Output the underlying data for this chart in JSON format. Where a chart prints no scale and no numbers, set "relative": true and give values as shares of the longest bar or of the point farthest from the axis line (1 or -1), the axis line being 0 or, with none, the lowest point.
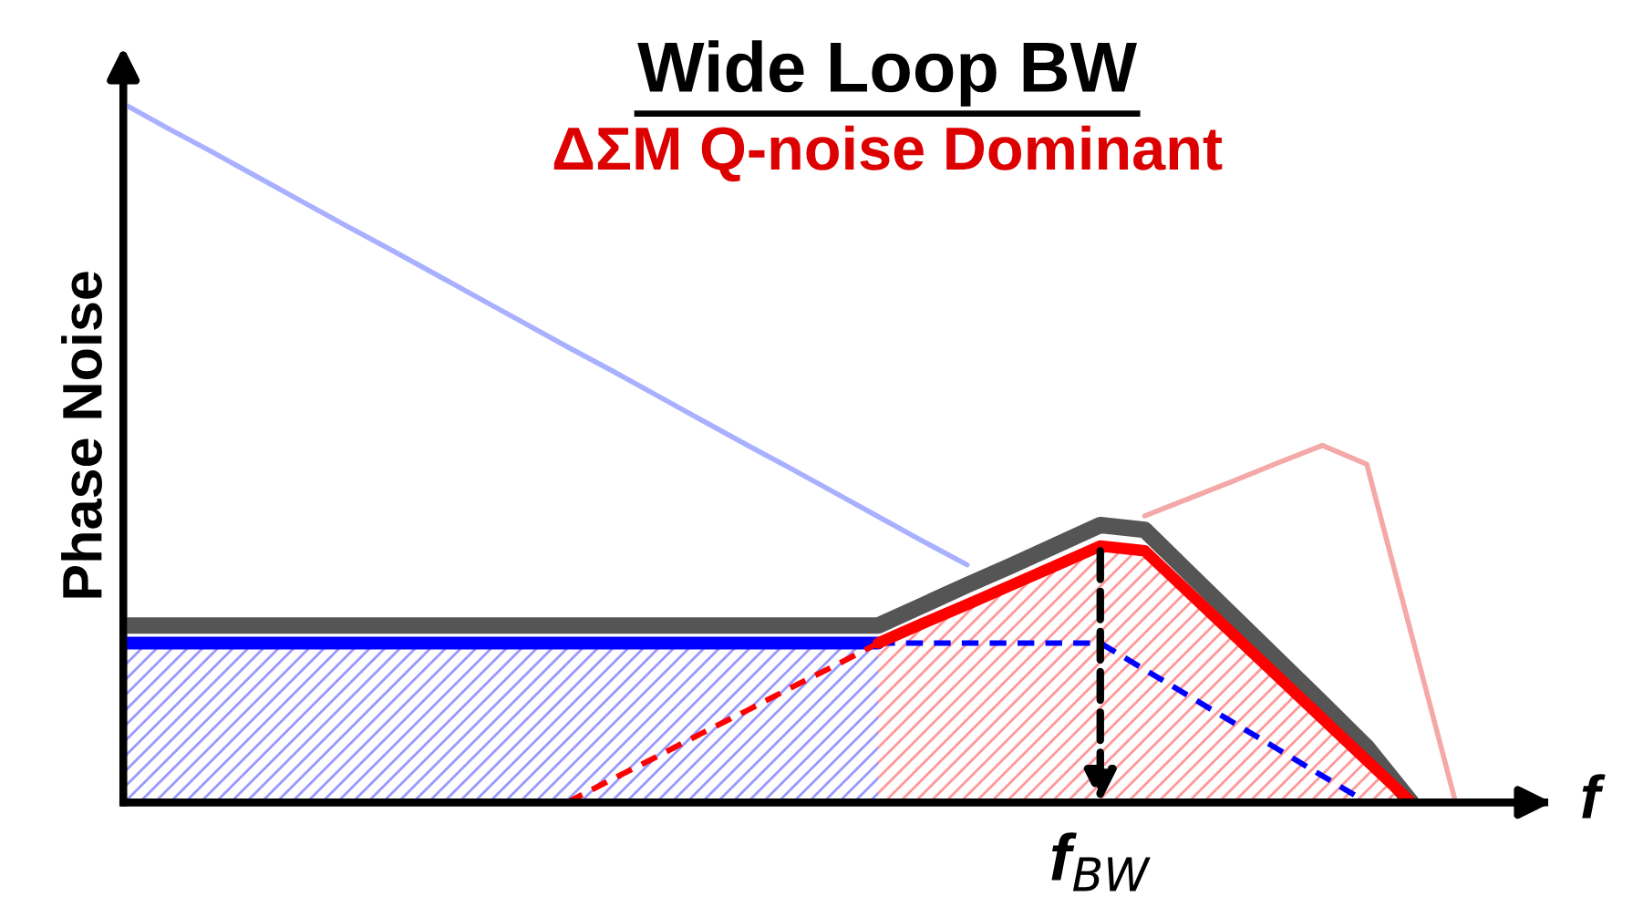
{
  "chart_data": {
    "type": "line",
    "relative": true,
    "title": "Wide Loop BW",
    "subtitle": "ΔΣM Q-noise Dominant",
    "xlabel": "f",
    "ylabel": "Phase Noise",
    "legend": false,
    "categories": [
      null,
      null,
      null,
      null,
      null,
      null,
      null,
      null,
      null,
      null,
      null,
      null,
      null,
      null,
      null,
      null,
      null,
      null,
      null,
      null,
      null,
      null,
      null,
      null,
      null,
      null,
      null,
      null,
      null,
      null,
      null,
      null,
      null
    ],
    "series": [
      {
        "type": "area",
        "color": "#0000ff",
        "values": [
          0.228,
          0.228,
          0.228,
          0.228,
          0.228,
          0.228,
          0.228,
          0.228,
          0.228,
          0.228,
          0.228,
          0.228,
          0.228,
          0.228,
          0.228,
          0.228,
          0.228,
          0.228,
          null,
          null,
          null,
          null,
          null,
          null,
          null,
          null,
          null,
          null,
          null,
          null,
          null,
          null,
          null
        ]
      },
      {
        "color": "#a8b0ff",
        "values": [
          1,
          0.965,
          0.931,
          0.896,
          0.861,
          0.826,
          0.792,
          0.757,
          0.722,
          0.687,
          0.652,
          0.618,
          0.583,
          0.548,
          0.513,
          0.479,
          0.444,
          0.409,
          0.374,
          0.34,
          null,
          null,
          null,
          null,
          null,
          null,
          null,
          null,
          null,
          null,
          null,
          null,
          null
        ]
      },
      {
        "color": "#f4a8a8",
        "values": [
          null,
          null,
          null,
          null,
          null,
          null,
          null,
          null,
          null,
          null,
          null,
          null,
          null,
          null,
          null,
          null,
          null,
          null,
          null,
          null,
          null,
          null,
          null,
          0.41,
          0.435,
          0.46,
          0.486,
          0.511,
          0.484,
          0.242,
          0,
          null,
          null
        ]
      },
      {
        "color": "#ff0000",
        "line_style": "dashed",
        "values": [
          null,
          null,
          null,
          null,
          null,
          null,
          null,
          null,
          null,
          null,
          0,
          0.033,
          0.065,
          0.098,
          0.13,
          0.163,
          0.195,
          0.228,
          null,
          null,
          null,
          null,
          null,
          null,
          null,
          null,
          null,
          null,
          null,
          null,
          null,
          null,
          null
        ]
      },
      {
        "color": "#0000ff",
        "line_style": "dashed",
        "values": [
          null,
          null,
          null,
          null,
          null,
          null,
          null,
          null,
          null,
          null,
          null,
          null,
          null,
          null,
          null,
          null,
          null,
          0.228,
          0.228,
          0.228,
          0.228,
          0.228,
          0.228,
          0.19,
          0.152,
          0.114,
          0.076,
          0.038,
          0,
          null,
          null,
          null,
          null
        ]
      },
      {
        "color": "#555555",
        "values": [
          0.253,
          0.253,
          0.253,
          0.253,
          0.253,
          0.253,
          0.253,
          0.253,
          0.253,
          0.253,
          0.253,
          0.253,
          0.253,
          0.253,
          0.253,
          0.253,
          0.253,
          0.253,
          0.282,
          0.311,
          0.339,
          0.368,
          0.397,
          0.39,
          0.328,
          0.266,
          0.204,
          0.142,
          0.079,
          0,
          null,
          null,
          null
        ]
      },
      {
        "type": "area",
        "color": "#ff0000",
        "values": [
          null,
          null,
          null,
          null,
          null,
          null,
          null,
          null,
          null,
          null,
          null,
          null,
          null,
          null,
          null,
          null,
          null,
          0.228,
          0.256,
          0.283,
          0.311,
          0.339,
          0.367,
          0.36,
          0.3,
          0.24,
          0.18,
          0.12,
          0.06,
          0,
          null,
          null,
          null
        ]
      }
    ],
    "annotations": [
      {
        "text": "f$_{BW}$",
        "y": 0.367
      }
    ]
  }
}
